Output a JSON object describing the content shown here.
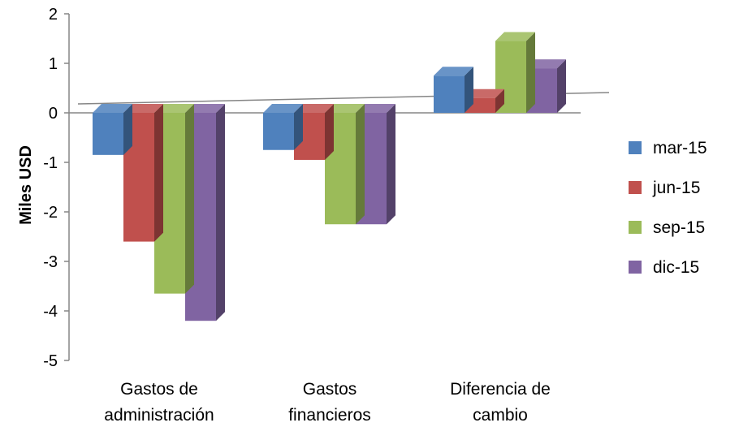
{
  "chart_data": {
    "type": "bar",
    "ylabel": "Miles USD",
    "ylim": [
      -5,
      2
    ],
    "yticks": [
      "2",
      "1",
      "0",
      "-1",
      "-2",
      "-3",
      "-4",
      "-5"
    ],
    "categories": [
      [
        "Gastos de",
        "administración"
      ],
      [
        "Gastos",
        "financieros"
      ],
      [
        "Diferencia de",
        "cambio"
      ]
    ],
    "series": [
      {
        "name": "mar-15",
        "color": "#4F81BD",
        "values": [
          -0.85,
          -0.75,
          0.75
        ]
      },
      {
        "name": "jun-15",
        "color": "#C0504D",
        "values": [
          -2.6,
          -0.95,
          0.3
        ]
      },
      {
        "name": "sep-15",
        "color": "#9BBB59",
        "values": [
          -3.65,
          -2.25,
          1.45
        ]
      },
      {
        "name": "dic-15",
        "color": "#8064A2",
        "values": [
          -4.2,
          -2.25,
          0.9
        ]
      }
    ],
    "legend_position": "right",
    "grid": false,
    "style": "3d-clustered-column"
  }
}
